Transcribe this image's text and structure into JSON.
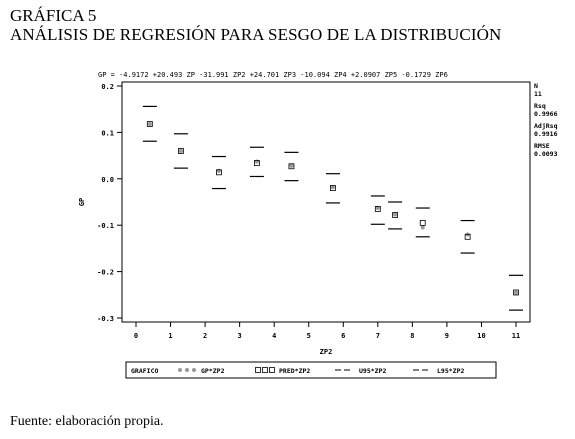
{
  "figure_label": "GRÁFICA 5",
  "figure_title": "ANÁLISIS DE REGRESIÓN PARA SESGO DE LA DISTRIBUCIÓN",
  "source_note": "Fuente: elaboración propia.",
  "colors": {
    "axis": "#000000",
    "obs": "#9a9a9a",
    "pred": "#000000",
    "ci": "#000000"
  },
  "chart_data": {
    "type": "scatter",
    "equation": "GP = -4.9172 +20.493 ZP -31.991 ZP2 +24.701 ZP3 -10.094 ZP4 +2.0907 ZP5 -0.1729 ZP6",
    "xlabel": "ZP2",
    "ylabel": "GP",
    "xlim": [
      0,
      11
    ],
    "ylim": [
      -0.3,
      0.2
    ],
    "x_ticks": [
      "0",
      "1",
      "2",
      "3",
      "4",
      "5",
      "6",
      "7",
      "8",
      "9",
      "10",
      "11"
    ],
    "y_ticks": [
      "0.2",
      "0.1",
      "0.0",
      "-0.1",
      "-0.2",
      "-0.3"
    ],
    "x": [
      0.4,
      1.3,
      2.4,
      3.5,
      4.5,
      5.7,
      7.0,
      7.5,
      8.3,
      9.6,
      11.0
    ],
    "series": [
      {
        "name": "GP*ZP2",
        "marker": "dot",
        "values": [
          0.118,
          0.06,
          0.017,
          0.037,
          0.028,
          -0.018,
          -0.063,
          -0.077,
          -0.105,
          -0.12,
          -0.245
        ]
      },
      {
        "name": "PRED*ZP2",
        "marker": "square",
        "values": [
          0.118,
          0.06,
          0.014,
          0.034,
          0.027,
          -0.02,
          -0.065,
          -0.078,
          -0.095,
          -0.125,
          -0.245
        ]
      },
      {
        "name": "U95*ZP2",
        "marker": "dash",
        "values": [
          0.156,
          0.097,
          0.048,
          0.068,
          0.057,
          0.011,
          -0.037,
          -0.05,
          -0.063,
          -0.09,
          -0.208
        ]
      },
      {
        "name": "L95*ZP2",
        "marker": "dash",
        "values": [
          0.081,
          0.023,
          -0.021,
          0.005,
          -0.004,
          -0.052,
          -0.098,
          -0.108,
          -0.125,
          -0.16,
          -0.283
        ]
      }
    ],
    "stats": [
      {
        "label": "N",
        "value": "11"
      },
      {
        "label": "Rsq",
        "value": "0.9966"
      },
      {
        "label": "AdjRsq",
        "value": "0.9916"
      },
      {
        "label": "RMSE",
        "value": "0.0093"
      }
    ],
    "legend_title": "GRAFICO",
    "legend_placement": "bottom",
    "grid": false
  }
}
